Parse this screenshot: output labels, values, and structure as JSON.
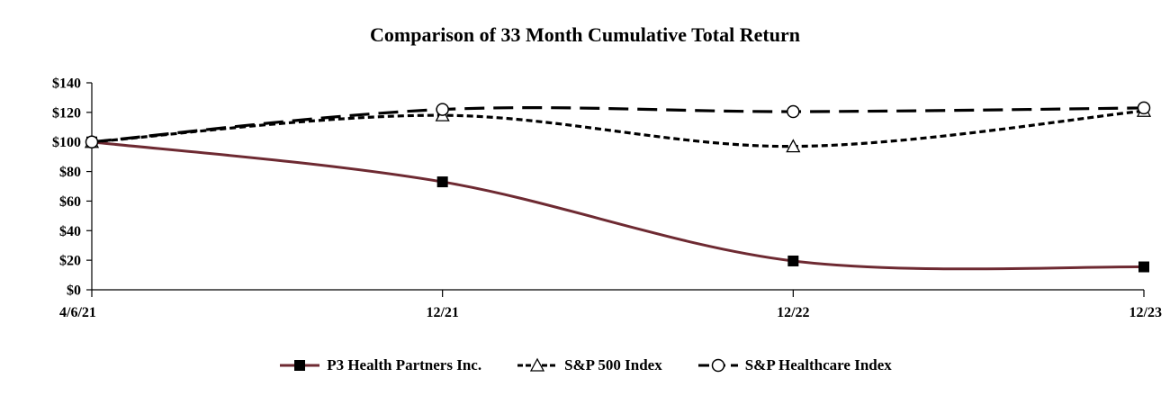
{
  "chart_data": {
    "type": "line",
    "title": "Comparison of 33 Month Cumulative Total Return",
    "xlabel": "",
    "ylabel": "",
    "categories": [
      "4/6/21",
      "12/21",
      "12/22",
      "12/23"
    ],
    "ylim": [
      0,
      140
    ],
    "y_ticks": [
      0,
      20,
      40,
      60,
      80,
      100,
      120,
      140
    ],
    "y_tick_labels": [
      "$0",
      "$20",
      "$40",
      "$60",
      "$80",
      "$100",
      "$120",
      "$140"
    ],
    "legend_position": "bottom",
    "series": [
      {
        "name": "P3 Health Partners Inc.",
        "values": [
          100,
          73,
          19.5,
          15.5
        ],
        "color": "#6e2a32",
        "style": "solid",
        "marker": "square"
      },
      {
        "name": "S&P 500 Index",
        "values": [
          100,
          118,
          97,
          121
        ],
        "color": "#000000",
        "style": "dotted-dash",
        "marker": "triangle"
      },
      {
        "name": "S&P Healthcare Index",
        "values": [
          100,
          122,
          120.5,
          123
        ],
        "color": "#000000",
        "style": "long-dash",
        "marker": "circle"
      }
    ]
  }
}
